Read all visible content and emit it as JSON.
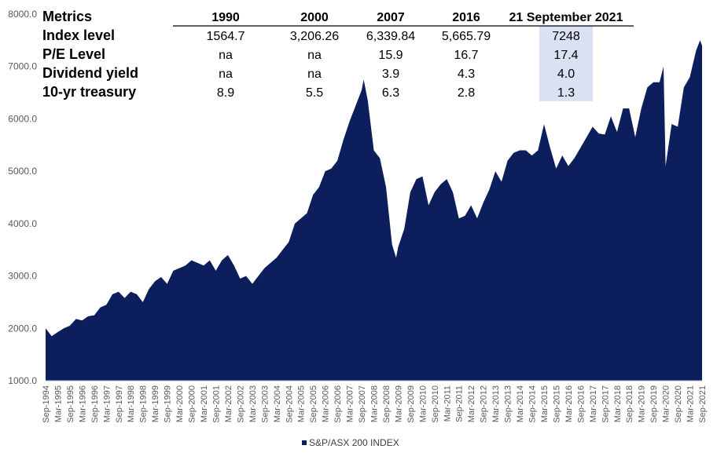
{
  "chart_data": {
    "type": "area",
    "series": [
      {
        "name": "S&P/ASX 200 INDEX",
        "color": "#0c1f5c",
        "points": [
          [
            "1994-09",
            2000
          ],
          [
            "1994-12",
            1850
          ],
          [
            "1995-03",
            1930
          ],
          [
            "1995-06",
            2000
          ],
          [
            "1995-09",
            2050
          ],
          [
            "1995-12",
            2180
          ],
          [
            "1996-03",
            2150
          ],
          [
            "1996-06",
            2230
          ],
          [
            "1996-09",
            2250
          ],
          [
            "1996-12",
            2400
          ],
          [
            "1997-03",
            2450
          ],
          [
            "1997-06",
            2650
          ],
          [
            "1997-09",
            2700
          ],
          [
            "1997-12",
            2580
          ],
          [
            "1998-03",
            2700
          ],
          [
            "1998-06",
            2650
          ],
          [
            "1998-09",
            2500
          ],
          [
            "1998-12",
            2750
          ],
          [
            "1999-03",
            2900
          ],
          [
            "1999-06",
            2980
          ],
          [
            "1999-09",
            2850
          ],
          [
            "1999-12",
            3100
          ],
          [
            "2000-03",
            3150
          ],
          [
            "2000-06",
            3200
          ],
          [
            "2000-09",
            3300
          ],
          [
            "2000-12",
            3250
          ],
          [
            "2001-03",
            3200
          ],
          [
            "2001-06",
            3300
          ],
          [
            "2001-09",
            3100
          ],
          [
            "2001-12",
            3300
          ],
          [
            "2002-03",
            3400
          ],
          [
            "2002-06",
            3200
          ],
          [
            "2002-09",
            2950
          ],
          [
            "2002-12",
            3000
          ],
          [
            "2003-03",
            2850
          ],
          [
            "2003-06",
            3000
          ],
          [
            "2003-09",
            3150
          ],
          [
            "2003-12",
            3250
          ],
          [
            "2004-03",
            3350
          ],
          [
            "2004-06",
            3500
          ],
          [
            "2004-09",
            3650
          ],
          [
            "2004-12",
            4000
          ],
          [
            "2005-03",
            4100
          ],
          [
            "2005-06",
            4200
          ],
          [
            "2005-09",
            4550
          ],
          [
            "2005-12",
            4700
          ],
          [
            "2006-03",
            5000
          ],
          [
            "2006-06",
            5050
          ],
          [
            "2006-09",
            5200
          ],
          [
            "2006-12",
            5600
          ],
          [
            "2007-03",
            5950
          ],
          [
            "2007-06",
            6250
          ],
          [
            "2007-09",
            6550
          ],
          [
            "2007-10",
            6750
          ],
          [
            "2007-12",
            6350
          ],
          [
            "2008-03",
            5400
          ],
          [
            "2008-06",
            5250
          ],
          [
            "2008-09",
            4700
          ],
          [
            "2008-12",
            3600
          ],
          [
            "2009-02",
            3350
          ],
          [
            "2009-03",
            3550
          ],
          [
            "2009-06",
            3900
          ],
          [
            "2009-09",
            4600
          ],
          [
            "2009-12",
            4850
          ],
          [
            "2010-03",
            4900
          ],
          [
            "2010-06",
            4350
          ],
          [
            "2010-09",
            4600
          ],
          [
            "2010-12",
            4750
          ],
          [
            "2011-03",
            4850
          ],
          [
            "2011-06",
            4600
          ],
          [
            "2011-09",
            4100
          ],
          [
            "2011-12",
            4150
          ],
          [
            "2012-03",
            4350
          ],
          [
            "2012-06",
            4100
          ],
          [
            "2012-09",
            4400
          ],
          [
            "2012-12",
            4650
          ],
          [
            "2013-03",
            5000
          ],
          [
            "2013-06",
            4800
          ],
          [
            "2013-09",
            5200
          ],
          [
            "2013-12",
            5350
          ],
          [
            "2014-03",
            5400
          ],
          [
            "2014-06",
            5400
          ],
          [
            "2014-09",
            5300
          ],
          [
            "2014-12",
            5400
          ],
          [
            "2015-03",
            5900
          ],
          [
            "2015-06",
            5450
          ],
          [
            "2015-09",
            5050
          ],
          [
            "2015-12",
            5300
          ],
          [
            "2016-03",
            5100
          ],
          [
            "2016-06",
            5250
          ],
          [
            "2016-09",
            5450
          ],
          [
            "2016-12",
            5650
          ],
          [
            "2017-03",
            5850
          ],
          [
            "2017-06",
            5720
          ],
          [
            "2017-09",
            5700
          ],
          [
            "2017-12",
            6050
          ],
          [
            "2018-03",
            5750
          ],
          [
            "2018-06",
            6200
          ],
          [
            "2018-09",
            6200
          ],
          [
            "2018-12",
            5650
          ],
          [
            "2019-03",
            6200
          ],
          [
            "2019-06",
            6600
          ],
          [
            "2019-09",
            6700
          ],
          [
            "2019-12",
            6700
          ],
          [
            "2020-02",
            7000
          ],
          [
            "2020-03",
            5100
          ],
          [
            "2020-06",
            5900
          ],
          [
            "2020-09",
            5850
          ],
          [
            "2020-12",
            6600
          ],
          [
            "2021-03",
            6800
          ],
          [
            "2021-06",
            7300
          ],
          [
            "2021-08",
            7500
          ],
          [
            "2021-09",
            7400
          ]
        ]
      }
    ],
    "x_tick_labels": [
      "Sep-1994",
      "Mar-1995",
      "Sep-1995",
      "Mar-1996",
      "Sep-1996",
      "Mar-1997",
      "Sep-1997",
      "Mar-1998",
      "Sep-1998",
      "Mar-1999",
      "Sep-1999",
      "Mar-2000",
      "Sep-2000",
      "Mar-2001",
      "Sep-2001",
      "Mar-2002",
      "Sep-2002",
      "Mar-2003",
      "Sep-2003",
      "Mar-2004",
      "Sep-2004",
      "Mar-2005",
      "Sep-2005",
      "Mar-2006",
      "Sep-2006",
      "Mar-2007",
      "Sep-2007",
      "Mar-2008",
      "Sep-2008",
      "Mar-2009",
      "Sep-2009",
      "Mar-2010",
      "Sep-2010",
      "Mar-2011",
      "Sep-2011",
      "Mar-2012",
      "Sep-2012",
      "Mar-2013",
      "Sep-2013",
      "Mar-2014",
      "Sep-2014",
      "Mar-2015",
      "Sep-2015",
      "Mar-2016",
      "Sep-2016",
      "Mar-2017",
      "Sep-2017",
      "Mar-2018",
      "Sep-2018",
      "Mar-2019",
      "Sep-2019",
      "Mar-2020",
      "Sep-2020",
      "Mar-2021",
      "Sep-2021"
    ],
    "y_tick_labels": [
      "1000.0",
      "2000.0",
      "3000.0",
      "4000.0",
      "5000.0",
      "6000.0",
      "7000.0",
      "8000.0"
    ],
    "xlim": [
      "1994-09",
      "2021-09"
    ],
    "ylim": [
      1000,
      8000
    ],
    "grid": false,
    "legend": "bottom-center",
    "title": "",
    "xlabel": "",
    "ylabel": ""
  },
  "table": {
    "header_label": "Metrics",
    "columns": [
      "1990",
      "2000",
      "2007",
      "2016",
      "21 September 2021"
    ],
    "highlight_color": "#d9e1f2",
    "rows": [
      {
        "label": "Index level",
        "values": [
          "1564.7",
          "3,206.26",
          "6,339.84",
          "5,665.79",
          "7248"
        ]
      },
      {
        "label": "P/E Level",
        "values": [
          "na",
          "na",
          "15.9",
          "16.7",
          "17.4"
        ]
      },
      {
        "label": "Dividend yield",
        "values": [
          "na",
          "na",
          "3.9",
          "4.3",
          "4.0"
        ]
      },
      {
        "label": "10-yr treasury",
        "values": [
          "8.9",
          "5.5",
          "6.3",
          "2.8",
          "1.3"
        ]
      }
    ]
  }
}
